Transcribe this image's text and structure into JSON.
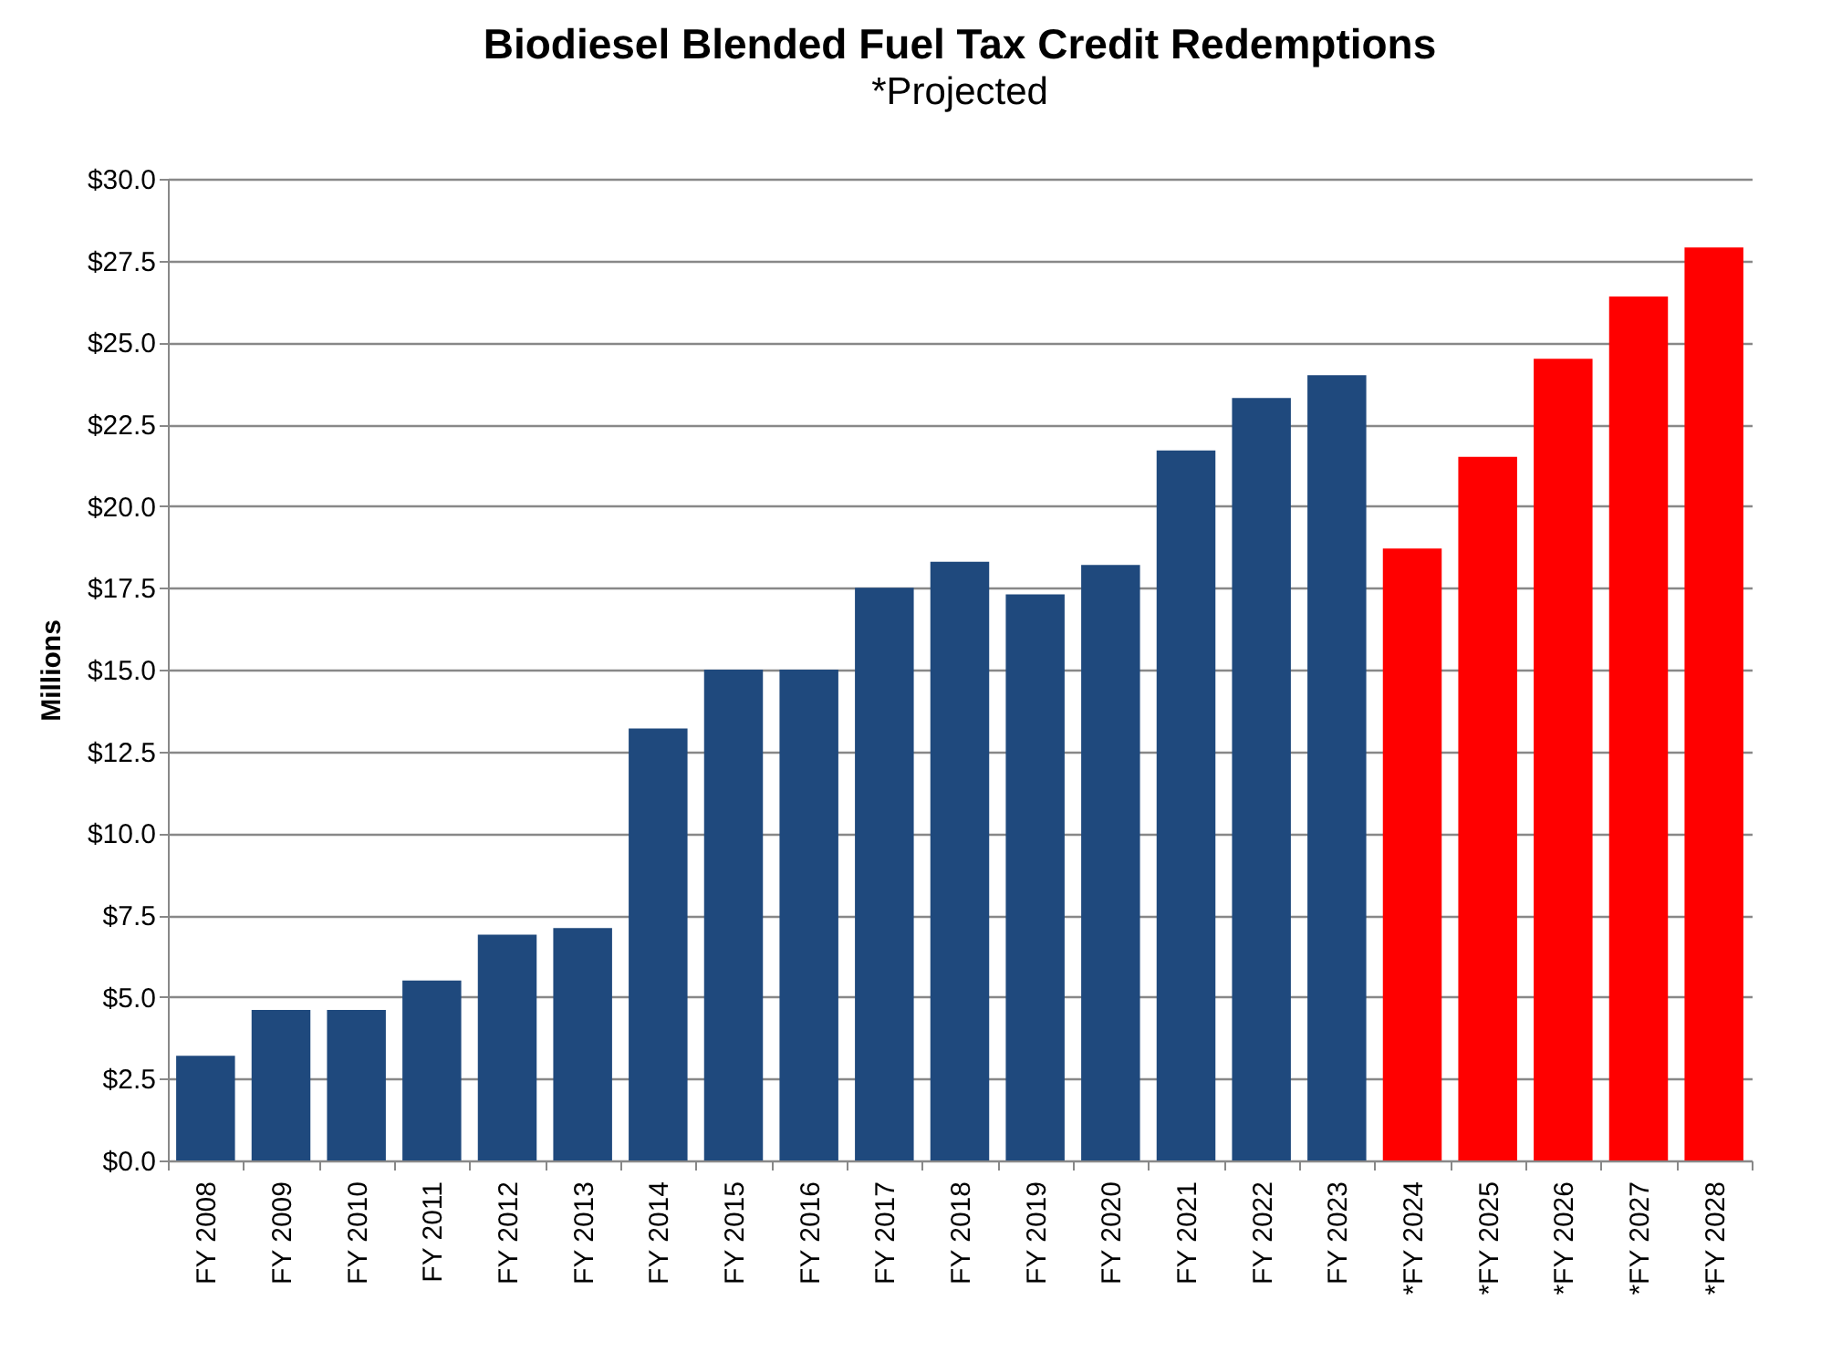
{
  "chart_data": {
    "type": "bar",
    "title": "Biodiesel Blended Fuel Tax Credit Redemptions",
    "subtitle": "*Projected",
    "ylabel": "Millions",
    "categories": [
      "FY 2008",
      "FY 2009",
      "FY 2010",
      "FY 2011",
      "FY 2012",
      "FY 2013",
      "FY 2014",
      "FY 2015",
      "FY 2016",
      "FY 2017",
      "FY 2018",
      "FY 2019",
      "FY 2020",
      "FY 2021",
      "FY 2022",
      "FY 2023",
      "*FY 2024",
      "*FY 2025",
      "*FY 2026",
      "*FY 2027",
      "*FY 2028"
    ],
    "values": [
      3.2,
      4.6,
      4.6,
      5.5,
      6.9,
      7.1,
      13.2,
      15.0,
      15.0,
      17.5,
      18.3,
      17.3,
      18.2,
      21.7,
      23.3,
      24.0,
      18.7,
      21.5,
      24.5,
      26.4,
      27.9
    ],
    "colors": [
      "#1f497d",
      "#1f497d",
      "#1f497d",
      "#1f497d",
      "#1f497d",
      "#1f497d",
      "#1f497d",
      "#1f497d",
      "#1f497d",
      "#1f497d",
      "#1f497d",
      "#1f497d",
      "#1f497d",
      "#1f497d",
      "#1f497d",
      "#1f497d",
      "#ff0000",
      "#ff0000",
      "#ff0000",
      "#ff0000",
      "#ff0000"
    ],
    "ylim": [
      0,
      30
    ],
    "yticks": [
      {
        "value": 0,
        "label": "$0.0"
      },
      {
        "value": 2.5,
        "label": "$2.5"
      },
      {
        "value": 5,
        "label": "$5.0"
      },
      {
        "value": 7.5,
        "label": "$7.5"
      },
      {
        "value": 10,
        "label": "$10.0"
      },
      {
        "value": 12.5,
        "label": "$12.5"
      },
      {
        "value": 15,
        "label": "$15.0"
      },
      {
        "value": 17.5,
        "label": "$17.5"
      },
      {
        "value": 20,
        "label": "$20.0"
      },
      {
        "value": 22.5,
        "label": "$22.5"
      },
      {
        "value": 25,
        "label": "$25.0"
      },
      {
        "value": 27.5,
        "label": "$27.5"
      },
      {
        "value": 30,
        "label": "$30.0"
      }
    ],
    "grid": "y"
  }
}
